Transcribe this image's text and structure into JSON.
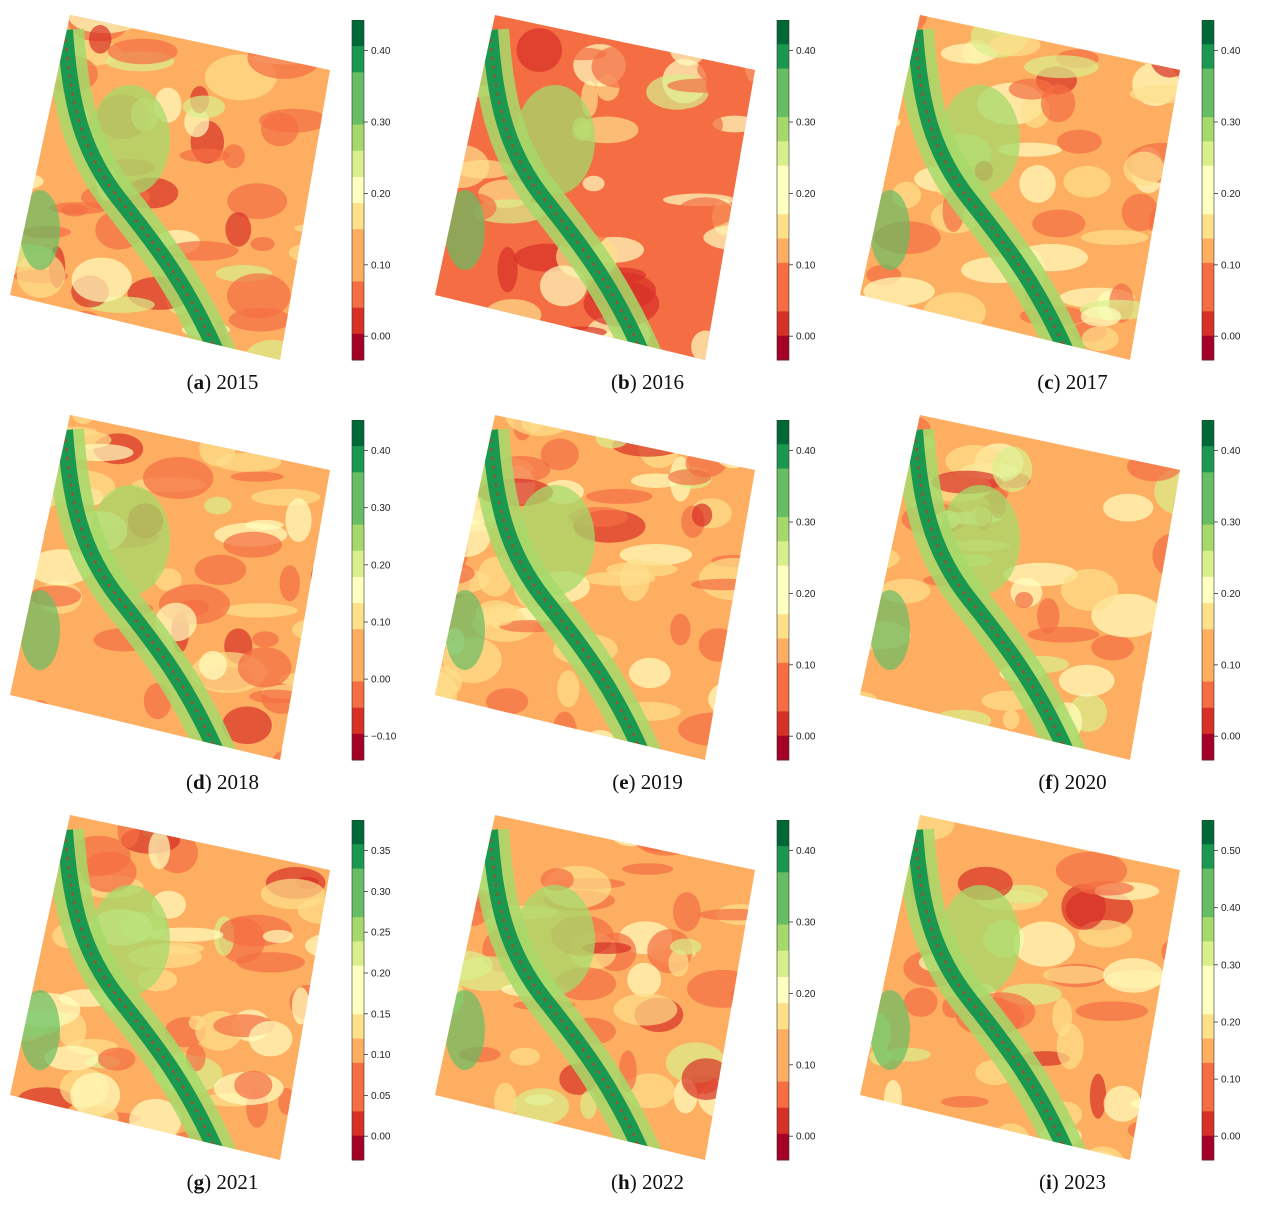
{
  "panels": [
    {
      "letter": "a",
      "year": "2015",
      "ticks": [
        "0.40",
        "0.30",
        "0.20",
        "0.10",
        "0.00"
      ]
    },
    {
      "letter": "b",
      "year": "2016",
      "ticks": [
        "0.40",
        "0.30",
        "0.20",
        "0.10",
        "0.00"
      ]
    },
    {
      "letter": "c",
      "year": "2017",
      "ticks": [
        "0.40",
        "0.30",
        "0.20",
        "0.10",
        "0.00"
      ]
    },
    {
      "letter": "d",
      "year": "2018",
      "ticks": [
        "0.40",
        "0.30",
        "0.20",
        "0.10",
        "0.00",
        "−0.10"
      ]
    },
    {
      "letter": "e",
      "year": "2019",
      "ticks": [
        "0.40",
        "0.30",
        "0.20",
        "0.10",
        "0.00"
      ]
    },
    {
      "letter": "f",
      "year": "2020",
      "ticks": [
        "0.40",
        "0.30",
        "0.20",
        "0.10",
        "0.00"
      ]
    },
    {
      "letter": "g",
      "year": "2021",
      "ticks": [
        "0.35",
        "0.30",
        "0.25",
        "0.20",
        "0.15",
        "0.10",
        "0.05",
        "0.00"
      ]
    },
    {
      "letter": "h",
      "year": "2022",
      "ticks": [
        "0.40",
        "0.30",
        "0.20",
        "0.10",
        "0.00"
      ]
    },
    {
      "letter": "i",
      "year": "2023",
      "ticks": [
        "0.50",
        "0.40",
        "0.30",
        "0.20",
        "0.10",
        "0.00"
      ]
    }
  ],
  "palette": [
    "#a50026",
    "#d73027",
    "#f46d43",
    "#fdae61",
    "#fee08b",
    "#ffffbf",
    "#d9ef8b",
    "#a6d96a",
    "#66bd63",
    "#1a9850",
    "#006837"
  ]
}
